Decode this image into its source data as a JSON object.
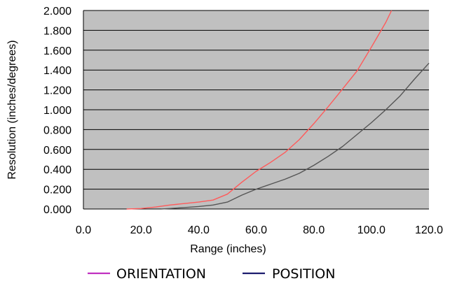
{
  "chart_data": {
    "type": "line",
    "title": "",
    "xlabel": "Range (inches)",
    "ylabel": "Resolution (inches/degrees)",
    "xlim": [
      0,
      120
    ],
    "ylim": [
      0,
      2
    ],
    "x_ticks": [
      "0.0",
      "20.0",
      "40.0",
      "60.0",
      "80.0",
      "100.0",
      "120.0"
    ],
    "y_ticks": [
      "0.000",
      "0.200",
      "0.400",
      "0.600",
      "0.800",
      "1.000",
      "1.200",
      "1.400",
      "1.600",
      "1.800",
      "2.000"
    ],
    "grid": true,
    "plot_background": "#c0c0c0",
    "legend_placement": "bottom",
    "series": [
      {
        "name": "ORIENTATION",
        "legend_color": "#c030c0",
        "line_color": "#ff5a5a",
        "x": [
          15,
          20,
          25,
          30,
          35,
          40,
          45,
          50,
          55,
          60,
          65,
          70,
          75,
          80,
          85,
          90,
          95,
          100,
          105,
          107
        ],
        "y": [
          0.0,
          0.005,
          0.02,
          0.04,
          0.055,
          0.07,
          0.09,
          0.15,
          0.27,
          0.38,
          0.47,
          0.57,
          0.7,
          0.86,
          1.03,
          1.21,
          1.39,
          1.63,
          1.88,
          2.0
        ]
      },
      {
        "name": "POSITION",
        "legend_color": "#1c1c6e",
        "line_color": "#555555",
        "x": [
          27,
          30,
          35,
          40,
          45,
          50,
          55,
          60,
          65,
          70,
          75,
          80,
          85,
          90,
          95,
          100,
          105,
          110,
          115,
          120
        ],
        "y": [
          0.0,
          0.005,
          0.015,
          0.025,
          0.04,
          0.07,
          0.14,
          0.2,
          0.25,
          0.3,
          0.36,
          0.44,
          0.53,
          0.63,
          0.75,
          0.87,
          1.0,
          1.14,
          1.31,
          1.47
        ]
      }
    ]
  }
}
